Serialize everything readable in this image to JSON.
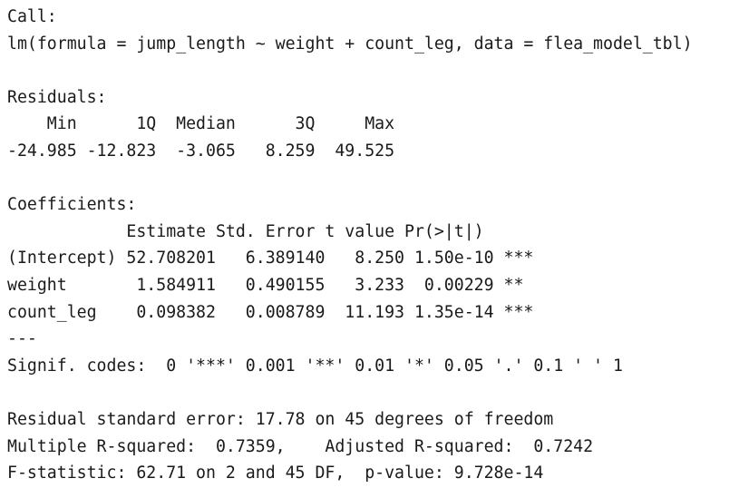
{
  "console": {
    "call_header": "Call:",
    "call_formula": "lm(formula = jump_length ~ weight + count_leg, data = flea_model_tbl)",
    "residuals_header": "Residuals:",
    "residuals_labels": "    Min      1Q  Median      3Q     Max ",
    "residuals_values": "-24.985 -12.823  -3.065   8.259  49.525 ",
    "coefficients_header": "Coefficients:",
    "coef_columns": "            Estimate Std. Error t value Pr(>|t|)    ",
    "coef_rows": [
      "(Intercept) 52.708201   6.389140   8.250 1.50e-10 ***",
      "weight       1.584911   0.490155   3.233  0.00229 ** ",
      "count_leg    0.098382   0.008789  11.193 1.35e-14 ***"
    ],
    "separator": "---",
    "signif_codes": "Signif. codes:  0 '***' 0.001 '**' 0.01 '*' 0.05 '.' 0.1 ' ' 1",
    "residual_se": "Residual standard error: 17.78 on 45 degrees of freedom",
    "r_squared": "Multiple R-squared:  0.7359,\tAdjusted R-squared:  0.7242 ",
    "f_statistic": "F-statistic: 62.71 on 2 and 45 DF,  p-value: 9.728e-14"
  }
}
